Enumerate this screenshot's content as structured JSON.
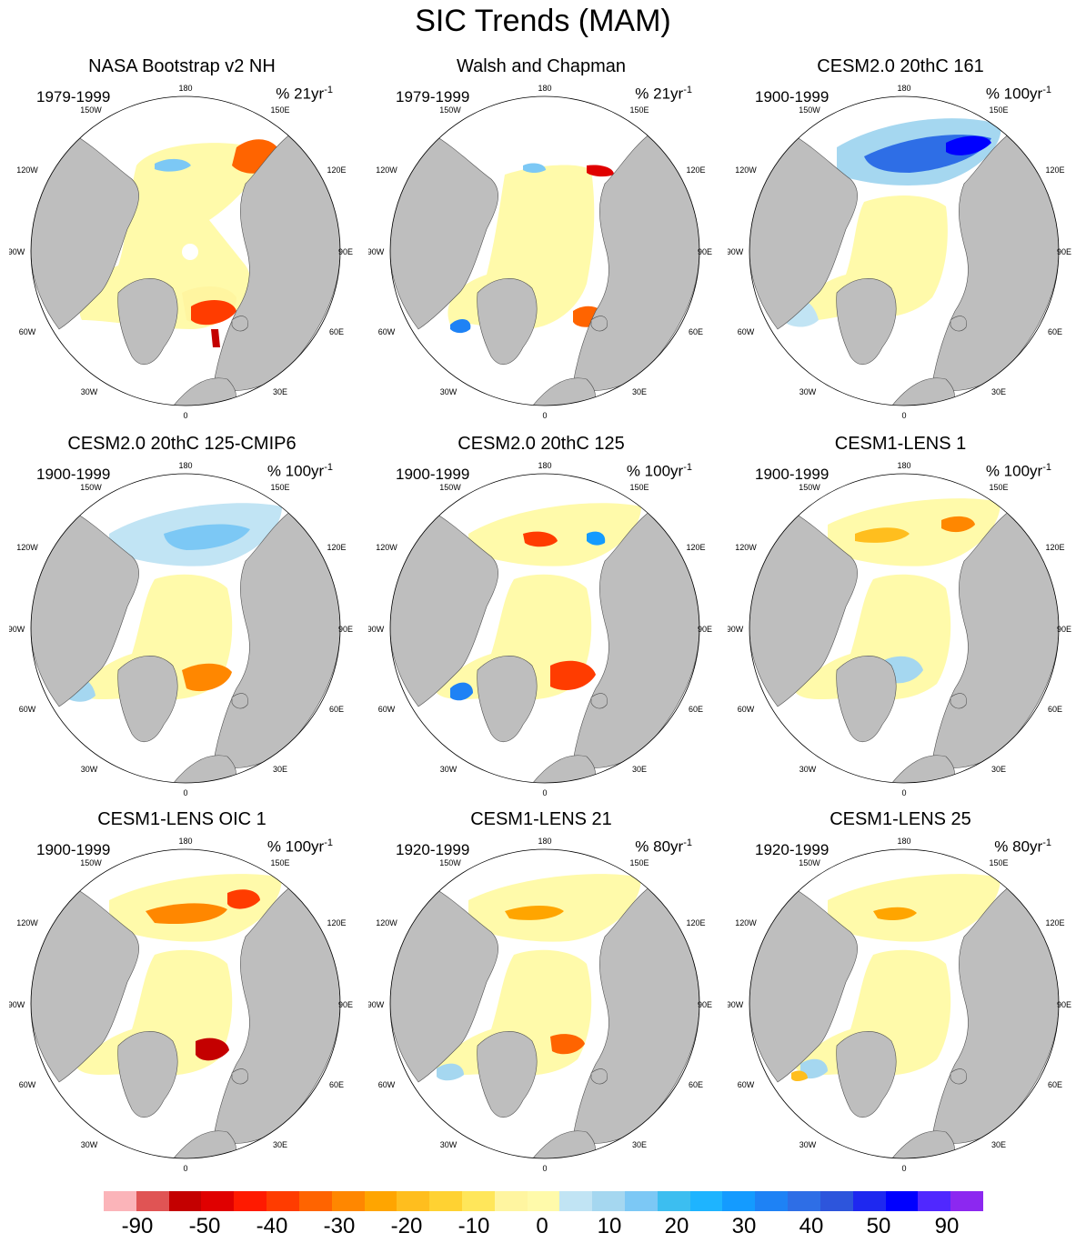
{
  "title": "SIC Trends (MAM)",
  "panels": [
    {
      "title": "NASA Bootstrap v2 NH",
      "period": "1979-1999",
      "units": "% 21yr",
      "units_exp": "-1",
      "pattern": "obs1"
    },
    {
      "title": "Walsh and Chapman",
      "period": "1979-1999",
      "units": "% 21yr",
      "units_exp": "-1",
      "pattern": "obs2"
    },
    {
      "title": "CESM2.0 20thC 161",
      "period": "1900-1999",
      "units": "% 100yr",
      "units_exp": "-1",
      "pattern": "m161"
    },
    {
      "title": "CESM2.0 20thC 125-CMIP6",
      "period": "1900-1999",
      "units": "% 100yr",
      "units_exp": "-1",
      "pattern": "m125c"
    },
    {
      "title": "CESM2.0 20thC 125",
      "period": "1900-1999",
      "units": "% 100yr",
      "units_exp": "-1",
      "pattern": "m125"
    },
    {
      "title": "CESM1-LENS 1",
      "period": "1900-1999",
      "units": "% 100yr",
      "units_exp": "-1",
      "pattern": "l1"
    },
    {
      "title": "CESM1-LENS OIC 1",
      "period": "1900-1999",
      "units": "% 100yr",
      "units_exp": "-1",
      "pattern": "oic"
    },
    {
      "title": "CESM1-LENS 21",
      "period": "1920-1999",
      "units": "% 80yr",
      "units_exp": "-1",
      "pattern": "l21"
    },
    {
      "title": "CESM1-LENS 25",
      "period": "1920-1999",
      "units": "% 80yr",
      "units_exp": "-1",
      "pattern": "l25"
    }
  ],
  "longitude_labels": {
    "180": "180",
    "150W": "150W",
    "150E": "150E",
    "120W": "120W",
    "120E": "120E",
    "90W": "90W",
    "90E": "90E",
    "60W": "60W",
    "60E": "60E",
    "30W": "30W",
    "30E": "30E",
    "0": "0"
  },
  "colorbar": {
    "colors": [
      "#fbb4b9",
      "#e05454",
      "#c40000",
      "#e00000",
      "#ff1a00",
      "#ff3c00",
      "#ff6400",
      "#ff8700",
      "#ffa500",
      "#ffbe1e",
      "#ffd232",
      "#ffe65a",
      "#fff5a0",
      "#fffaaa",
      "#c1e4f4",
      "#a5d7f0",
      "#7cc8f5",
      "#3cbef0",
      "#1eb4ff",
      "#149bff",
      "#1e82f5",
      "#2e6ee6",
      "#2d55dc",
      "#1e28f0",
      "#0000ff",
      "#5028ff",
      "#8c28f0"
    ],
    "labels": [
      "-90",
      "-50",
      "-40",
      "-30",
      "-20",
      "-10",
      "0",
      "10",
      "20",
      "30",
      "40",
      "50",
      "90"
    ]
  },
  "map_colors": {
    "land": "#bebebe",
    "ocean": "#ffffff",
    "coast": "#505050"
  }
}
